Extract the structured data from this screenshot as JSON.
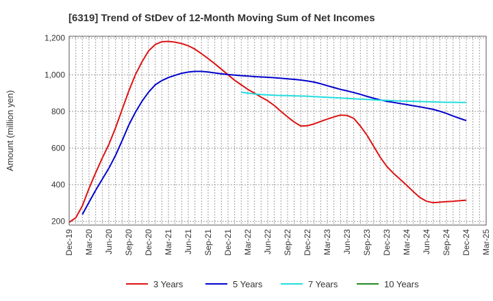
{
  "chart_data": {
    "type": "line",
    "title": "[6319]  Trend of StDev of 12-Month Moving Sum of Net Incomes",
    "xlabel": "",
    "ylabel": "Amount (million yen)",
    "ylim": [
      180,
      1210
    ],
    "yticks": [
      200,
      400,
      600,
      800,
      1000,
      1200
    ],
    "ytick_labels": [
      "200",
      "400",
      "600",
      "800",
      "1,000",
      "1,200"
    ],
    "xticks": [
      "Dec-19",
      "Mar-20",
      "Jun-20",
      "Sep-20",
      "Dec-20",
      "Mar-21",
      "Jun-21",
      "Sep-21",
      "Dec-21",
      "Mar-22",
      "Jun-22",
      "Sep-22",
      "Dec-22",
      "Mar-23",
      "Jun-23",
      "Sep-23",
      "Dec-23",
      "Mar-24",
      "Jun-24",
      "Sep-24",
      "Dec-24",
      "Mar-25"
    ],
    "grid": true,
    "legend_position": "bottom",
    "series": [
      {
        "name": "3 Years",
        "color": "#dd1111",
        "x": [
          "Dec-19",
          "Jan-20",
          "Feb-20",
          "Mar-20",
          "Apr-20",
          "May-20",
          "Jun-20",
          "Jul-20",
          "Aug-20",
          "Sep-20",
          "Oct-20",
          "Nov-20",
          "Dec-20",
          "Jan-21",
          "Feb-21",
          "Mar-21",
          "Apr-21",
          "May-21",
          "Jun-21",
          "Jul-21",
          "Aug-21",
          "Sep-21",
          "Oct-21",
          "Nov-21",
          "Dec-21",
          "Jan-22",
          "Feb-22",
          "Mar-22",
          "Apr-22",
          "May-22",
          "Jun-22",
          "Jul-22",
          "Aug-22",
          "Sep-22",
          "Oct-22",
          "Nov-22",
          "Dec-22",
          "Jan-23",
          "Feb-23",
          "Mar-23",
          "Apr-23",
          "May-23",
          "Jun-23",
          "Jul-23",
          "Aug-23",
          "Sep-23",
          "Oct-23",
          "Nov-23",
          "Dec-23",
          "Jan-24",
          "Feb-24",
          "Mar-24",
          "Apr-24",
          "May-24",
          "Jun-24",
          "Jul-24",
          "Aug-24",
          "Sep-24",
          "Oct-24",
          "Nov-24",
          "Dec-24"
        ],
        "values": [
          195,
          220,
          285,
          380,
          465,
          545,
          620,
          710,
          810,
          910,
          1000,
          1070,
          1130,
          1165,
          1180,
          1182,
          1178,
          1170,
          1158,
          1140,
          1115,
          1088,
          1060,
          1030,
          1000,
          970,
          945,
          920,
          900,
          878,
          858,
          832,
          800,
          770,
          742,
          720,
          722,
          732,
          745,
          758,
          770,
          780,
          778,
          762,
          720,
          670,
          610,
          550,
          500,
          462,
          430,
          397,
          362,
          330,
          310,
          302,
          305,
          308,
          310,
          313,
          316
        ]
      },
      {
        "name": "5 Years",
        "color": "#0000cc",
        "x": [
          "Feb-20",
          "Mar-20",
          "Apr-20",
          "May-20",
          "Jun-20",
          "Jul-20",
          "Aug-20",
          "Sep-20",
          "Oct-20",
          "Nov-20",
          "Dec-20",
          "Jan-21",
          "Feb-21",
          "Mar-21",
          "Apr-21",
          "May-21",
          "Jun-21",
          "Jul-21",
          "Aug-21",
          "Sep-21",
          "Oct-21",
          "Nov-21",
          "Dec-21",
          "Jan-22",
          "Feb-22",
          "Mar-22",
          "Apr-22",
          "May-22",
          "Jun-22",
          "Jul-22",
          "Aug-22",
          "Sep-22",
          "Oct-22",
          "Nov-22",
          "Dec-22",
          "Jan-23",
          "Feb-23",
          "Mar-23",
          "Apr-23",
          "May-23",
          "Jun-23",
          "Jul-23",
          "Aug-23",
          "Sep-23",
          "Oct-23",
          "Nov-23",
          "Dec-23",
          "Jan-24",
          "Feb-24",
          "Mar-24",
          "Apr-24",
          "May-24",
          "Jun-24",
          "Jul-24",
          "Aug-24",
          "Sep-24",
          "Oct-24",
          "Nov-24",
          "Dec-24"
        ],
        "values": [
          238,
          305,
          370,
          430,
          490,
          560,
          640,
          725,
          795,
          855,
          905,
          945,
          968,
          985,
          997,
          1008,
          1015,
          1018,
          1018,
          1015,
          1010,
          1005,
          1001,
          998,
          995,
          993,
          990,
          988,
          986,
          984,
          981,
          978,
          975,
          971,
          966,
          960,
          951,
          940,
          930,
          920,
          912,
          903,
          893,
          882,
          872,
          863,
          855,
          849,
          843,
          837,
          831,
          825,
          818,
          811,
          801,
          789,
          775,
          762,
          750
        ]
      },
      {
        "name": "7 Years",
        "color": "#22dddd",
        "x": [
          "Feb-22",
          "Mar-22",
          "Apr-22",
          "May-22",
          "Jun-22",
          "Jul-22",
          "Aug-22",
          "Sep-22",
          "Oct-22",
          "Nov-22",
          "Dec-22",
          "Jan-23",
          "Feb-23",
          "Mar-23",
          "Apr-23",
          "May-23",
          "Jun-23",
          "Jul-23",
          "Aug-23",
          "Sep-23",
          "Oct-23",
          "Nov-23",
          "Dec-23",
          "Jan-24",
          "Feb-24",
          "Mar-24",
          "Apr-24",
          "May-24",
          "Jun-24",
          "Jul-24",
          "Aug-24",
          "Sep-24",
          "Oct-24",
          "Nov-24",
          "Dec-24"
        ],
        "values": [
          905,
          900,
          895,
          892,
          890,
          888,
          887,
          886,
          885,
          884,
          883,
          881,
          879,
          877,
          875,
          873,
          871,
          869,
          867,
          865,
          863,
          861,
          860,
          858,
          857,
          856,
          855,
          854,
          853,
          852,
          851,
          850,
          850,
          849,
          849
        ]
      },
      {
        "name": "10 Years",
        "color": "#228822",
        "x": [],
        "values": []
      }
    ]
  }
}
